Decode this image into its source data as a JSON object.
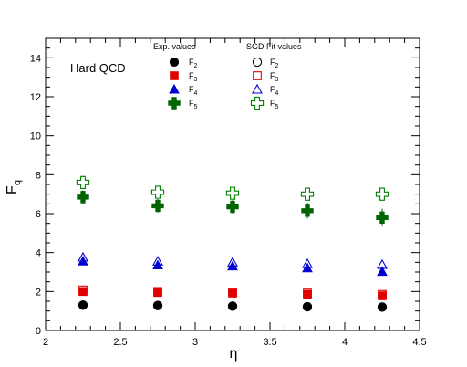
{
  "chart_data": {
    "type": "scatter",
    "title": "",
    "annotation": "Hard QCD",
    "xlabel": "η",
    "ylabel": "F",
    "ylabel_subscript": "q",
    "xlim": [
      2,
      4.5
    ],
    "ylim": [
      0,
      15
    ],
    "xticks": [
      "2",
      "2.5",
      "3",
      "3.5",
      "4",
      "4.5"
    ],
    "yticks": [
      "0",
      "2",
      "4",
      "6",
      "8",
      "10",
      "12",
      "14"
    ],
    "grid": false,
    "legend": {
      "exp_header": "Exp. values",
      "fit_header": "SGD Fit values",
      "placement": "top"
    },
    "x": [
      2.25,
      2.75,
      3.25,
      3.75,
      4.25
    ],
    "series": [
      {
        "name": "F2",
        "label_main": "F",
        "label_sub": "2",
        "kind": "exp",
        "marker": "filled-circle",
        "color": "#000000",
        "values": [
          1.3,
          1.28,
          1.25,
          1.22,
          1.2
        ],
        "errors": [
          0.08,
          0.08,
          0.08,
          0.08,
          0.08
        ]
      },
      {
        "name": "F3",
        "label_main": "F",
        "label_sub": "3",
        "kind": "exp",
        "marker": "filled-square",
        "color": "#e00000",
        "values": [
          2.0,
          1.95,
          1.92,
          1.85,
          1.78
        ],
        "errors": [
          0.15,
          0.15,
          0.15,
          0.15,
          0.15
        ]
      },
      {
        "name": "F4",
        "label_main": "F",
        "label_sub": "4",
        "kind": "exp",
        "marker": "filled-triangle",
        "color": "#0000d0",
        "values": [
          3.55,
          3.35,
          3.3,
          3.2,
          3.02
        ],
        "errors": [
          0.1,
          0.1,
          0.1,
          0.1,
          0.12
        ]
      },
      {
        "name": "F5",
        "label_main": "F",
        "label_sub": "5",
        "kind": "exp",
        "marker": "filled-cross",
        "color": "#006400",
        "values": [
          6.85,
          6.4,
          6.35,
          6.15,
          5.8
        ],
        "errors": [
          0.35,
          0.35,
          0.35,
          0.4,
          0.45
        ]
      },
      {
        "name": "F2",
        "label_main": "F",
        "label_sub": "2",
        "kind": "fit",
        "marker": "open-circle",
        "color": "#000000",
        "values": [
          1.3,
          1.28,
          1.25,
          1.22,
          1.2
        ]
      },
      {
        "name": "F3",
        "label_main": "F",
        "label_sub": "3",
        "kind": "fit",
        "marker": "open-square",
        "color": "#e00000",
        "values": [
          2.08,
          2.0,
          1.97,
          1.92,
          1.85
        ]
      },
      {
        "name": "F4",
        "label_main": "F",
        "label_sub": "4",
        "kind": "fit",
        "marker": "open-triangle",
        "color": "#0000d0",
        "values": [
          3.75,
          3.55,
          3.5,
          3.42,
          3.38
        ]
      },
      {
        "name": "F5",
        "label_main": "F",
        "label_sub": "5",
        "kind": "fit",
        "marker": "open-cross",
        "color": "#008000",
        "values": [
          7.6,
          7.1,
          7.05,
          7.0,
          7.0
        ]
      }
    ]
  }
}
